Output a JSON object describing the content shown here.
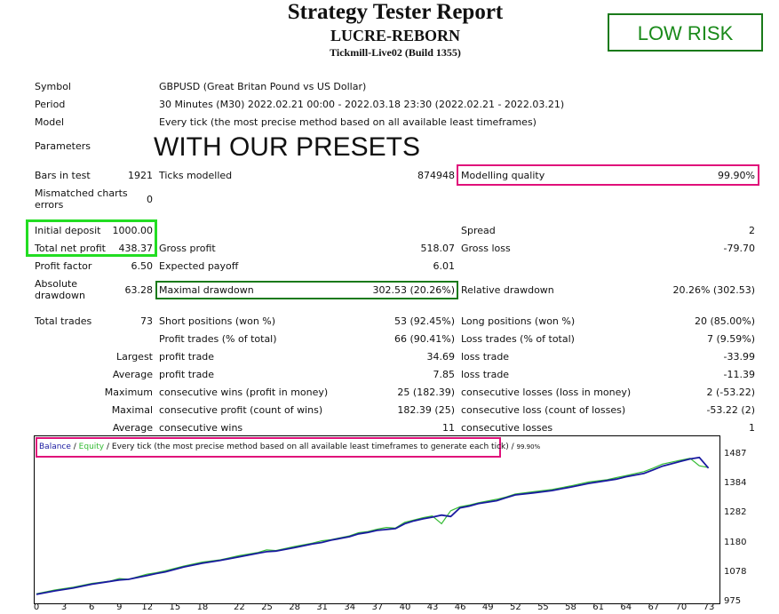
{
  "header": {
    "title": "Strategy Tester Report",
    "ea": "LUCRE-REBORN",
    "server": "Tickmill-Live02 (Build 1355)",
    "risk_badge": "LOW RISK",
    "presets_overlay": "WITH OUR PRESETS"
  },
  "params": {
    "symbol_label": "Symbol",
    "symbol_value": "GBPUSD (Great Britan Pound vs US Dollar)",
    "period_label": "Period",
    "period_value": "30 Minutes (M30) 2022.02.21 00:00 - 2022.03.18 23:30 (2022.02.21 - 2022.03.21)",
    "model_label": "Model",
    "model_value": "Every tick (the most precise method based on all available least timeframes)",
    "parameters_label": "Parameters"
  },
  "stats": {
    "bars_label": "Bars in test",
    "bars_value": "1921",
    "ticks_label": "Ticks modelled",
    "ticks_value": "874948",
    "mq_label": "Modelling quality",
    "mq_value": "99.90%",
    "mismatch_label_1": "Mismatched charts",
    "mismatch_label_2": "errors",
    "mismatch_value": "0",
    "deposit_label": "Initial deposit",
    "deposit_value": "1000.00",
    "spread_label": "Spread",
    "spread_value": "2",
    "net_label": "Total net profit",
    "net_value": "438.37",
    "gross_profit_label": "Gross profit",
    "gross_profit_value": "518.07",
    "gross_loss_label": "Gross loss",
    "gross_loss_value": "-79.70",
    "pf_label": "Profit factor",
    "pf_value": "6.50",
    "ep_label": "Expected payoff",
    "ep_value": "6.01",
    "abs_dd_label_1": "Absolute",
    "abs_dd_label_2": "drawdown",
    "abs_dd_value": "63.28",
    "max_dd_label": "Maximal drawdown",
    "max_dd_value": "302.53 (20.26%)",
    "rel_dd_label": "Relative drawdown",
    "rel_dd_value": "20.26% (302.53)",
    "total_trades_label": "Total trades",
    "total_trades_value": "73",
    "short_label": "Short positions (won %)",
    "short_value": "53 (92.45%)",
    "long_label": "Long positions (won %)",
    "long_value": "20 (85.00%)",
    "profit_trades_label": "Profit trades (% of total)",
    "profit_trades_value": "66 (90.41%)",
    "loss_trades_label": "Loss trades (% of total)",
    "loss_trades_value": "7 (9.59%)",
    "largest": "Largest",
    "largest_profit_label": "profit trade",
    "largest_profit_value": "34.69",
    "largest_loss_label": "loss trade",
    "largest_loss_value": "-33.99",
    "average": "Average",
    "avg_profit_label": "profit trade",
    "avg_profit_value": "7.85",
    "avg_loss_label": "loss trade",
    "avg_loss_value": "-11.39",
    "maximum": "Maximum",
    "max_cw_label": "consecutive wins (profit in money)",
    "max_cw_value": "25 (182.39)",
    "max_cl_label": "consecutive losses (loss in money)",
    "max_cl_value": "2 (-53.22)",
    "maximal": "Maximal",
    "mxl_cp_label": "consecutive profit (count of wins)",
    "mxl_cp_value": "182.39 (25)",
    "mxl_cl_label": "consecutive loss (count of losses)",
    "mxl_cl_value": "-53.22 (2)",
    "average2": "Average",
    "avg_cw_label": "consecutive wins",
    "avg_cw_value": "11",
    "avg_cl_label": "consecutive losses",
    "avg_cl_value": "1"
  },
  "legend": {
    "balance": "Balance",
    "sep1": " / ",
    "equity": "Equity",
    "rest": " / Every tick (the most precise method based on all available least timeframes to generate each tick)",
    "sep2": " / ",
    "quality": "99.90%"
  },
  "colors": {
    "green_box": "#22dd22",
    "dark_green_box": "#1a7a1a",
    "pink_box": "#e0107a",
    "balance_line": "#1a1aa0",
    "equity_line": "#33bb33",
    "risk_text": "#1a8a1a"
  },
  "chart_data": {
    "type": "line",
    "title": "",
    "xlabel": "",
    "ylabel": "",
    "ylim": [
      975,
      1530
    ],
    "xlim": [
      0,
      74
    ],
    "x_ticks": [
      0,
      3,
      6,
      9,
      12,
      15,
      18,
      22,
      25,
      28,
      31,
      34,
      37,
      40,
      43,
      46,
      49,
      52,
      55,
      58,
      61,
      64,
      67,
      70,
      73
    ],
    "y_ticks": [
      975,
      1078,
      1180,
      1282,
      1384,
      1487
    ],
    "series": [
      {
        "name": "Balance",
        "x": [
          0,
          2,
          4,
          6,
          8,
          9,
          10,
          12,
          13,
          14,
          16,
          18,
          20,
          22,
          24,
          25,
          26,
          28,
          30,
          31,
          32,
          34,
          35,
          36,
          37,
          38,
          39,
          40,
          41,
          42,
          43,
          44,
          45,
          46,
          47,
          48,
          50,
          51,
          52,
          54,
          56,
          58,
          60,
          62,
          63,
          64,
          66,
          67,
          68,
          70,
          71,
          72,
          73
        ],
        "values": [
          1000,
          1012,
          1022,
          1035,
          1045,
          1050,
          1052,
          1065,
          1072,
          1078,
          1095,
          1108,
          1118,
          1130,
          1142,
          1148,
          1150,
          1162,
          1175,
          1180,
          1188,
          1200,
          1210,
          1215,
          1222,
          1225,
          1228,
          1245,
          1255,
          1262,
          1268,
          1275,
          1270,
          1300,
          1306,
          1315,
          1325,
          1335,
          1345,
          1352,
          1360,
          1372,
          1385,
          1395,
          1400,
          1408,
          1420,
          1432,
          1445,
          1462,
          1470,
          1475,
          1438
        ]
      },
      {
        "name": "Equity",
        "x": [
          0,
          2,
          4,
          6,
          8,
          9,
          10,
          12,
          13,
          14,
          16,
          18,
          20,
          22,
          24,
          25,
          26,
          28,
          30,
          31,
          32,
          34,
          35,
          36,
          37,
          38,
          39,
          40,
          41,
          42,
          43,
          44,
          45,
          46,
          47,
          48,
          50,
          51,
          52,
          54,
          56,
          58,
          60,
          62,
          63,
          64,
          66,
          67,
          68,
          70,
          71,
          72,
          73
        ],
        "values": [
          1002,
          1015,
          1025,
          1038,
          1046,
          1055,
          1052,
          1070,
          1075,
          1082,
          1098,
          1112,
          1120,
          1134,
          1145,
          1154,
          1152,
          1166,
          1178,
          1186,
          1190,
          1203,
          1214,
          1218,
          1226,
          1232,
          1230,
          1250,
          1258,
          1266,
          1272,
          1245,
          1290,
          1304,
          1310,
          1318,
          1330,
          1338,
          1348,
          1356,
          1364,
          1376,
          1390,
          1398,
          1405,
          1412,
          1426,
          1438,
          1452,
          1466,
          1472,
          1446,
          1440
        ]
      }
    ]
  }
}
